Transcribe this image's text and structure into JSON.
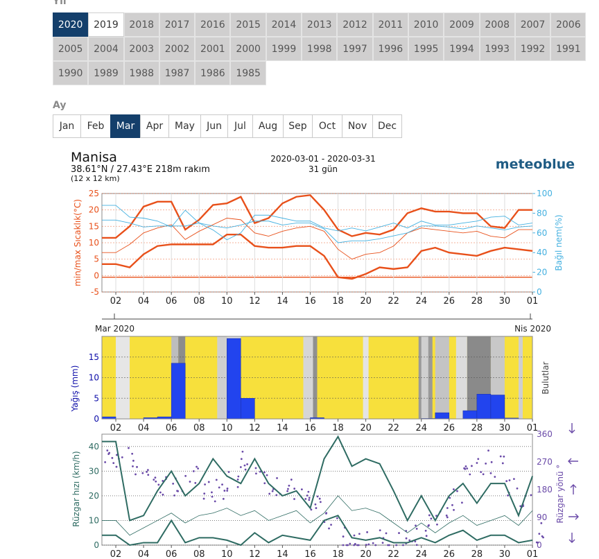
{
  "year_section": {
    "label": "Yıl",
    "years": [
      "2020",
      "2019",
      "2018",
      "2017",
      "2016",
      "2015",
      "2014",
      "2013",
      "2012",
      "2011",
      "2010",
      "2009",
      "2008",
      "2007",
      "2006",
      "2005",
      "2004",
      "2003",
      "2002",
      "2001",
      "2000",
      "1999",
      "1998",
      "1997",
      "1996",
      "1995",
      "1994",
      "1993",
      "1992",
      "1991",
      "1990",
      "1989",
      "1988",
      "1987",
      "1986",
      "1985"
    ],
    "selected": "2020",
    "highlighted": "2019"
  },
  "month_section": {
    "label": "Ay",
    "months": [
      "Jan",
      "Feb",
      "Mar",
      "Apr",
      "May",
      "Jun",
      "Jul",
      "Aug",
      "Sep",
      "Oct",
      "Nov",
      "Dec"
    ],
    "selected": "Mar"
  },
  "header": {
    "location": "Manisa",
    "coords": "38.61°N / 27.43°E   218m rakım",
    "grid": "(12 x 12 km)",
    "date_range": "2020-03-01 - 2020-03-31",
    "days": "31 gün",
    "brand": "meteoblue"
  },
  "colors": {
    "temp": "#e8501a",
    "humidity": "#43b0e0",
    "precip": "#2244ee",
    "cloud_yellow": "#f7e03c",
    "wind": "#2e6b62",
    "wind_dir": "#6a4aa8",
    "precip_axis": "#0b0ba8",
    "selected": "#143f6b"
  },
  "chart_data": [
    {
      "type": "line",
      "title": "",
      "x_ticks": [
        "02",
        "04",
        "06",
        "08",
        "10",
        "12",
        "14",
        "16",
        "18",
        "20",
        "22",
        "24",
        "26",
        "28",
        "30",
        "01"
      ],
      "x_start_label": "Mar 2020",
      "x_end_label": "Nis 2020",
      "ylabel": "min/max Sıcaklık(°C)",
      "ylim": [
        -5,
        25
      ],
      "y_ticks": [
        -5,
        0,
        5,
        10,
        15,
        20,
        25
      ],
      "y2label": "Bağıl nem(%)",
      "y2lim": [
        0,
        100
      ],
      "y2_ticks": [
        0,
        20,
        40,
        60,
        80,
        100
      ],
      "x": [
        1,
        2,
        3,
        4,
        5,
        6,
        7,
        8,
        9,
        10,
        11,
        12,
        13,
        14,
        15,
        16,
        17,
        18,
        19,
        20,
        21,
        22,
        23,
        24,
        25,
        26,
        27,
        28,
        29,
        30,
        31,
        32
      ],
      "series": [
        {
          "name": "max",
          "axis": "left",
          "values": [
            11.5,
            11.5,
            15,
            21,
            22.5,
            22.5,
            14,
            17,
            21.5,
            22,
            24,
            16,
            17.5,
            22,
            24,
            24.5,
            20,
            14,
            12,
            13,
            12.5,
            14,
            19,
            20.5,
            19.5,
            19.5,
            19,
            19,
            15,
            14.5,
            20,
            20
          ]
        },
        {
          "name": "mean",
          "axis": "left",
          "values": [
            7,
            7,
            9.5,
            13,
            14.5,
            15.5,
            11,
            13.5,
            15.5,
            17.5,
            17,
            13,
            12,
            13.5,
            14.5,
            15,
            13.5,
            8,
            5,
            6.5,
            7,
            9,
            13,
            14.5,
            14,
            13.5,
            13,
            13.5,
            12,
            11.5,
            14,
            14
          ]
        },
        {
          "name": "min",
          "axis": "left",
          "values": [
            3.5,
            3.5,
            2.5,
            6.5,
            9,
            9.5,
            9.5,
            9.5,
            9.5,
            12.5,
            12.5,
            9,
            8.5,
            8.5,
            9,
            9,
            6,
            -0.5,
            -1,
            0.5,
            2.5,
            2,
            2.5,
            7.5,
            8.5,
            7,
            6.5,
            6,
            7.5,
            8.5,
            8,
            7.5
          ]
        },
        {
          "name": "max_rh",
          "axis": "right",
          "values": [
            88,
            88,
            76,
            75,
            72,
            66,
            83,
            70,
            63,
            53,
            60,
            78,
            78,
            75,
            72,
            72,
            65,
            62,
            65,
            62,
            66,
            70,
            65,
            72,
            68,
            68,
            70,
            72,
            76,
            77,
            68,
            70
          ]
        },
        {
          "name": "min_rh",
          "axis": "right",
          "values": [
            73,
            73,
            70,
            66,
            67,
            67,
            67,
            70,
            67,
            65,
            68,
            72,
            72,
            68,
            70,
            70,
            64,
            50,
            52,
            52,
            54,
            57,
            60,
            67,
            67,
            66,
            64,
            67,
            65,
            63,
            66,
            67
          ]
        }
      ]
    },
    {
      "type": "bar",
      "ylabel": "Yağış (mm)",
      "ylim": [
        0,
        20
      ],
      "y_ticks": [
        0,
        5,
        10,
        15
      ],
      "right_label": "Bulutlar",
      "x_ticks": [
        "02",
        "04",
        "06",
        "08",
        "10",
        "12",
        "14",
        "16",
        "18",
        "20",
        "22",
        "24",
        "26",
        "28",
        "30",
        "01"
      ],
      "day_start": [
        1,
        2,
        3,
        4,
        5,
        6,
        7,
        8,
        9,
        10,
        11,
        12,
        13,
        14,
        15,
        16,
        17,
        18,
        19,
        20,
        21,
        22,
        23,
        24,
        25,
        26,
        27,
        28,
        29,
        30,
        31
      ],
      "values": [
        0.5,
        0,
        0,
        0.3,
        0.5,
        13.5,
        0,
        0,
        0,
        19.5,
        5,
        0,
        0,
        0,
        0,
        0.3,
        0,
        0,
        0,
        0,
        0,
        0,
        0,
        0.1,
        1.5,
        0,
        2,
        6,
        5.8,
        0.2,
        0
      ]
    },
    {
      "type": "line",
      "ylabel": "Rüzgar hızı (km/h)",
      "ylim": [
        0,
        45
      ],
      "y_ticks": [
        0,
        10,
        20,
        30,
        40
      ],
      "y2label": "Rüzgar yönü °",
      "y2lim": [
        0,
        360
      ],
      "y2_ticks": [
        0,
        90,
        180,
        270,
        360
      ],
      "x_ticks": [
        "02",
        "04",
        "06",
        "08",
        "10",
        "12",
        "14",
        "16",
        "18",
        "20",
        "22",
        "24",
        "26",
        "28",
        "30",
        "01"
      ],
      "x": [
        1,
        2,
        3,
        4,
        5,
        6,
        7,
        8,
        9,
        10,
        11,
        12,
        13,
        14,
        15,
        16,
        17,
        18,
        19,
        20,
        21,
        22,
        23,
        24,
        25,
        26,
        27,
        28,
        29,
        30,
        31,
        32
      ],
      "series": [
        {
          "name": "max_gust",
          "values": [
            42,
            42,
            10,
            12,
            22,
            30,
            20,
            25,
            35,
            28,
            25,
            35,
            25,
            20,
            22,
            15,
            35,
            44,
            32,
            35,
            33,
            22,
            10,
            20,
            10,
            20,
            25,
            17,
            25,
            25,
            12,
            28
          ]
        },
        {
          "name": "mean_wind",
          "values": [
            10,
            10,
            4,
            7,
            10,
            13,
            9,
            12,
            13,
            15,
            12,
            14,
            10,
            12,
            14,
            9,
            13,
            20,
            14,
            15,
            13,
            9,
            5,
            9,
            5,
            9,
            12,
            8,
            10,
            12,
            8,
            14
          ]
        },
        {
          "name": "min_wind",
          "values": [
            4,
            4,
            0,
            1,
            1,
            10,
            1,
            3,
            3,
            2,
            0,
            5,
            1,
            4,
            3,
            2,
            10,
            12,
            3,
            2,
            3,
            1,
            1,
            3,
            1,
            4,
            6,
            2,
            4,
            4,
            1,
            2
          ]
        }
      ],
      "direction_degrees_sample": [
        300,
        280,
        260,
        240,
        200,
        180,
        220,
        190,
        180,
        210,
        280,
        240,
        200,
        180,
        150,
        120,
        90,
        20,
        5,
        10,
        20,
        15,
        30,
        60,
        100,
        150,
        250,
        270,
        260,
        200,
        160,
        40
      ]
    }
  ]
}
